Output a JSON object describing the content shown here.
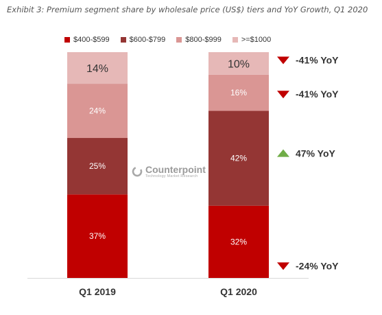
{
  "title": "Exhibit 3: Premium segment share by wholesale price (US$) tiers and YoY Growth, Q1 2020",
  "watermark": {
    "name": "Counterpoint",
    "tagline": "Technology Market Research"
  },
  "colors": {
    "text_dark": "#333333",
    "axis": "#d9d9d9",
    "arrow_down": "#c00000",
    "arrow_up": "#70ad47"
  },
  "chart_data": {
    "type": "bar",
    "stacked": true,
    "categories": [
      "Q1 2019",
      "Q1 2020"
    ],
    "ylim": [
      0,
      100
    ],
    "legend_position": "top",
    "grid": false,
    "series": [
      {
        "name": "$400-$599",
        "color": "#c00000",
        "label_color": "#ffffff",
        "values": [
          37,
          32
        ],
        "labels": [
          "37%",
          "32%"
        ]
      },
      {
        "name": "$600-$799",
        "color": "#943634",
        "label_color": "#ffffff",
        "values": [
          25,
          42
        ],
        "labels": [
          "25%",
          "42%"
        ]
      },
      {
        "name": "$800-$999",
        "color": "#da9694",
        "label_color": "#ffffff",
        "values": [
          24,
          16
        ],
        "labels": [
          "24%",
          "16%"
        ]
      },
      {
        "name": ">=$1000",
        "color": "#e6b8b7",
        "label_color": "#333333",
        "values": [
          14,
          10
        ],
        "labels": [
          "14%",
          "10%"
        ]
      }
    ],
    "annotations": [
      {
        "series": ">=$1000",
        "text": "-41% YoY",
        "direction": "down"
      },
      {
        "series": "$800-$999",
        "text": "-41% YoY",
        "direction": "down"
      },
      {
        "series": "$600-$799",
        "text": "47% YoY",
        "direction": "up"
      },
      {
        "series": "$400-$599",
        "text": "-24% YoY",
        "direction": "down"
      }
    ]
  }
}
